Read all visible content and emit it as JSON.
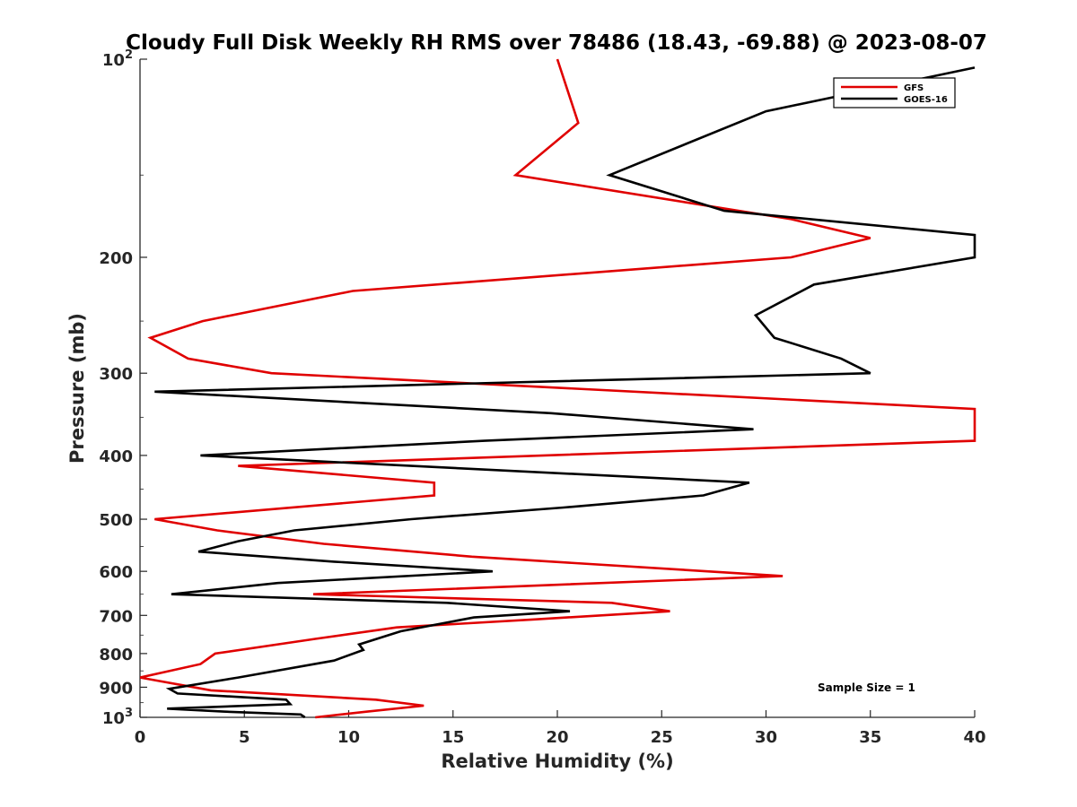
{
  "chart_data": {
    "type": "line",
    "title": "Cloudy Full Disk Weekly RH RMS over 78486 (18.43, -69.88) @ 2023-08-07",
    "xlabel": "Relative Humidity (%)",
    "ylabel": "Pressure (mb)",
    "xlim": [
      0,
      40
    ],
    "ylim": [
      100,
      1000
    ],
    "y_scale": "log",
    "y_reversed": true,
    "grid": false,
    "legend_position": "top-right",
    "x_ticks": [
      "0",
      "5",
      "10",
      "15",
      "20",
      "25",
      "30",
      "35",
      "40"
    ],
    "y_ticks": [
      {
        "value": 100,
        "label": "10",
        "sup": "2"
      },
      {
        "value": 200,
        "label": "200",
        "sup": ""
      },
      {
        "value": 300,
        "label": "300",
        "sup": ""
      },
      {
        "value": 400,
        "label": "400",
        "sup": ""
      },
      {
        "value": 500,
        "label": "500",
        "sup": ""
      },
      {
        "value": 600,
        "label": "600",
        "sup": ""
      },
      {
        "value": 700,
        "label": "700",
        "sup": ""
      },
      {
        "value": 800,
        "label": "800",
        "sup": ""
      },
      {
        "value": 900,
        "label": "900",
        "sup": ""
      },
      {
        "value": 1000,
        "label": "10",
        "sup": "3"
      }
    ],
    "series": [
      {
        "name": "GFS",
        "color": "#e00000",
        "points": [
          [
            20.0,
            100
          ],
          [
            21.0,
            125
          ],
          [
            18.0,
            150
          ],
          [
            31.2,
            175
          ],
          [
            35.0,
            187
          ],
          [
            31.2,
            200
          ],
          [
            10.2,
            225
          ],
          [
            3.0,
            250
          ],
          [
            0.5,
            265
          ],
          [
            2.3,
            285
          ],
          [
            6.3,
            300
          ],
          [
            40.0,
            340
          ],
          [
            40.0,
            380
          ],
          [
            4.7,
            415
          ],
          [
            14.1,
            440
          ],
          [
            14.1,
            460
          ],
          [
            0.7,
            500
          ],
          [
            3.7,
            520
          ],
          [
            8.8,
            545
          ],
          [
            15.9,
            570
          ],
          [
            30.8,
            610
          ],
          [
            8.3,
            650
          ],
          [
            22.6,
            670
          ],
          [
            25.4,
            690
          ],
          [
            18.9,
            710
          ],
          [
            12.3,
            730
          ],
          [
            8.4,
            760
          ],
          [
            3.6,
            800
          ],
          [
            2.9,
            830
          ],
          [
            0.0,
            870
          ],
          [
            3.4,
            910
          ],
          [
            11.3,
            940
          ],
          [
            13.6,
            960
          ],
          [
            10.9,
            980
          ],
          [
            8.4,
            1000
          ]
        ]
      },
      {
        "name": "GOES-16",
        "color": "#000000",
        "points": [
          [
            40.0,
            103
          ],
          [
            30.0,
            120
          ],
          [
            22.5,
            150
          ],
          [
            28.0,
            170
          ],
          [
            40.0,
            185
          ],
          [
            40.0,
            200
          ],
          [
            32.3,
            220
          ],
          [
            29.5,
            245
          ],
          [
            30.4,
            265
          ],
          [
            33.6,
            285
          ],
          [
            35.0,
            300
          ],
          [
            0.7,
            320
          ],
          [
            19.7,
            345
          ],
          [
            29.4,
            365
          ],
          [
            16.5,
            380
          ],
          [
            2.9,
            400
          ],
          [
            29.2,
            440
          ],
          [
            27.0,
            460
          ],
          [
            20.3,
            480
          ],
          [
            13.0,
            500
          ],
          [
            7.4,
            520
          ],
          [
            4.7,
            540
          ],
          [
            2.8,
            560
          ],
          [
            9.3,
            580
          ],
          [
            16.9,
            600
          ],
          [
            6.6,
            625
          ],
          [
            1.5,
            650
          ],
          [
            14.7,
            670
          ],
          [
            20.6,
            690
          ],
          [
            16.0,
            705
          ],
          [
            12.5,
            740
          ],
          [
            10.5,
            775
          ],
          [
            10.7,
            790
          ],
          [
            9.3,
            820
          ],
          [
            4.7,
            870
          ],
          [
            1.4,
            905
          ],
          [
            1.8,
            920
          ],
          [
            7.0,
            940
          ],
          [
            7.2,
            955
          ],
          [
            1.3,
            970
          ],
          [
            4.0,
            980
          ],
          [
            7.7,
            990
          ],
          [
            7.9,
            1000
          ]
        ]
      }
    ],
    "annotations": [
      "Sample Size = 1"
    ]
  }
}
